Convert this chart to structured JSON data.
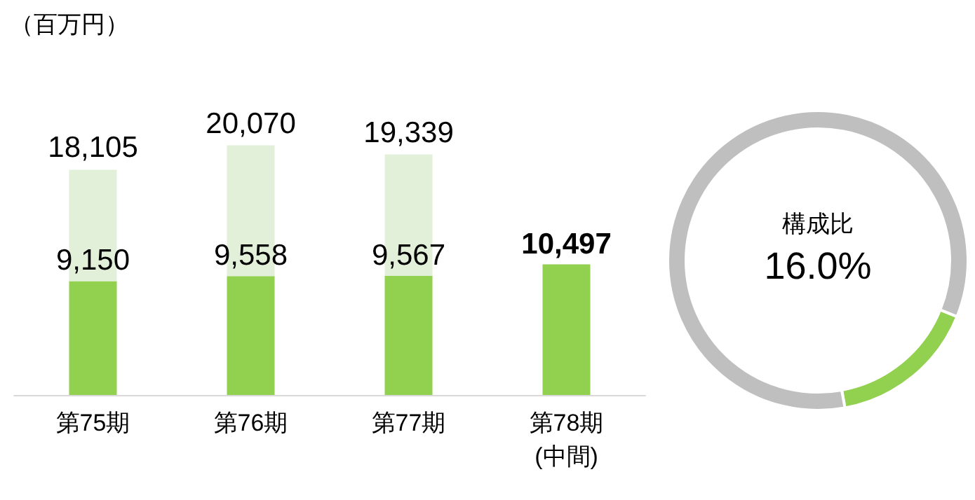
{
  "chart_data": [
    {
      "type": "bar",
      "ylabel": "（百万円）",
      "categories": [
        "第75期",
        "第76期",
        "第77期",
        "第78期\n(中間)"
      ],
      "stacked": true,
      "series": [
        {
          "color": "#92d050",
          "values": [
            9150,
            9558,
            9567,
            10497
          ],
          "value_labels": [
            "9,150",
            "9,558",
            "9,567",
            "10,497"
          ]
        },
        {
          "color": "#e2f0d9",
          "values": [
            8955,
            10512,
            9772,
            null
          ]
        }
      ],
      "totals": [
        "18,105",
        "20,070",
        "19,339",
        null
      ]
    },
    {
      "type": "donut",
      "categories": [
        null,
        null
      ],
      "values": [
        16.0,
        84.0
      ],
      "colors": [
        "#92d050",
        "#bfbfbf"
      ],
      "annotations": [
        "構成比",
        "16.0%"
      ]
    }
  ]
}
